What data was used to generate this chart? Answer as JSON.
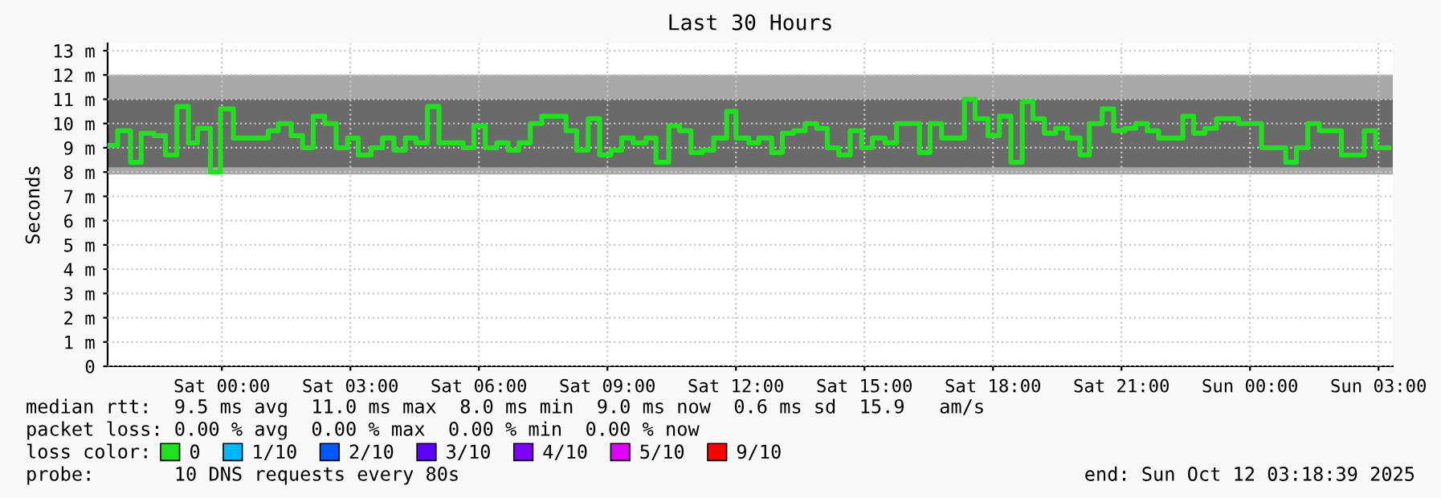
{
  "chart_data": {
    "type": "step",
    "title": "Last 30 Hours",
    "ylabel": "Seconds",
    "legend_title": "loss color:",
    "legend": "bottom",
    "x": [
      "2025-10-10T21:20",
      "2025-10-10T21:34",
      "2025-10-10T21:52",
      "2025-10-10T22:07",
      "2025-10-10T22:25",
      "2025-10-10T22:41",
      "2025-10-10T22:57",
      "2025-10-10T23:13",
      "2025-10-10T23:26",
      "2025-10-10T23:44",
      "2025-10-10T23:58",
      "2025-10-11T00:16",
      "2025-10-11T01:05",
      "2025-10-11T01:19",
      "2025-10-11T01:37",
      "2025-10-11T01:53",
      "2025-10-11T02:08",
      "2025-10-11T02:24",
      "2025-10-11T02:40",
      "2025-10-11T02:56",
      "2025-10-11T03:11",
      "2025-10-11T03:29",
      "2025-10-11T03:45",
      "2025-10-11T04:01",
      "2025-10-11T04:17",
      "2025-10-11T04:32",
      "2025-10-11T04:48",
      "2025-10-11T05:04",
      "2025-10-11T05:22",
      "2025-10-11T05:38",
      "2025-10-11T05:53",
      "2025-10-11T06:09",
      "2025-10-11T06:25",
      "2025-10-11T06:41",
      "2025-10-11T06:56",
      "2025-10-11T07:12",
      "2025-10-11T07:28",
      "2025-10-11T08:02",
      "2025-10-11T08:17",
      "2025-10-11T08:33",
      "2025-10-11T08:49",
      "2025-10-11T09:05",
      "2025-10-11T09:20",
      "2025-10-11T09:36",
      "2025-10-11T09:54",
      "2025-10-11T10:08",
      "2025-10-11T10:26",
      "2025-10-11T10:41",
      "2025-10-11T10:57",
      "2025-10-11T11:13",
      "2025-10-11T11:29",
      "2025-10-11T11:47",
      "2025-10-11T12:00",
      "2025-10-11T12:18",
      "2025-10-11T12:32",
      "2025-10-11T12:50",
      "2025-10-11T13:05",
      "2025-10-11T13:21",
      "2025-10-11T13:37",
      "2025-10-11T13:53",
      "2025-10-11T14:08",
      "2025-10-11T14:24",
      "2025-10-11T14:40",
      "2025-10-11T14:56",
      "2025-10-11T15:11",
      "2025-10-11T15:29",
      "2025-10-11T15:45",
      "2025-10-11T16:17",
      "2025-10-11T16:32",
      "2025-10-11T16:48",
      "2025-10-11T17:20",
      "2025-10-11T17:35",
      "2025-10-11T17:53",
      "2025-10-11T18:09",
      "2025-10-11T18:25",
      "2025-10-11T18:41",
      "2025-10-11T18:56",
      "2025-10-11T19:12",
      "2025-10-11T19:28",
      "2025-10-11T19:44",
      "2025-10-11T20:02",
      "2025-10-11T20:15",
      "2025-10-11T20:33",
      "2025-10-11T20:49",
      "2025-10-11T21:05",
      "2025-10-11T21:20",
      "2025-10-11T21:36",
      "2025-10-11T21:52",
      "2025-10-11T22:26",
      "2025-10-11T22:41",
      "2025-10-11T22:57",
      "2025-10-11T23:13",
      "2025-10-11T23:29",
      "2025-10-11T23:44",
      "2025-10-12T00:00",
      "2025-10-12T00:16",
      "2025-10-12T00:32",
      "2025-10-12T00:50",
      "2025-10-12T01:05",
      "2025-10-12T01:21",
      "2025-10-12T01:37",
      "2025-10-12T02:08",
      "2025-10-12T02:40",
      "2025-10-12T02:56",
      "2025-10-12T03:14"
    ],
    "series": [
      {
        "name": "0",
        "color": "#20e020",
        "values": [
          9.1,
          9.7,
          8.4,
          9.6,
          9.5,
          8.7,
          10.7,
          9.2,
          9.8,
          8.0,
          10.6,
          9.4,
          9.7,
          10.0,
          9.5,
          9.0,
          10.3,
          10.0,
          9.0,
          9.4,
          8.7,
          9.0,
          9.4,
          8.9,
          9.4,
          9.2,
          10.7,
          9.2,
          9.2,
          9.0,
          9.9,
          9.0,
          9.2,
          8.9,
          9.2,
          10.0,
          10.3,
          9.7,
          8.9,
          10.2,
          8.7,
          8.9,
          9.4,
          9.2,
          9.4,
          8.4,
          9.9,
          9.7,
          8.8,
          8.9,
          9.4,
          10.5,
          9.4,
          9.2,
          9.4,
          8.8,
          9.6,
          9.7,
          10.0,
          9.8,
          9.0,
          8.7,
          9.7,
          9.0,
          9.4,
          9.2,
          10.0,
          8.8,
          10.0,
          9.4,
          11.0,
          10.2,
          9.5,
          10.3,
          8.4,
          10.9,
          10.2,
          9.6,
          9.8,
          9.4,
          8.7,
          10.0,
          10.6,
          9.7,
          9.8,
          10.0,
          9.7,
          9.4,
          10.3,
          9.6,
          9.8,
          10.2,
          10.2,
          10.0,
          10.0,
          9.0,
          9.0,
          8.4,
          9.0,
          10.0,
          9.7,
          8.7,
          9.7,
          9.0,
          9.0
        ]
      },
      {
        "name": "1/10",
        "color": "#00b8ff",
        "values": [
          null,
          null,
          null,
          null,
          null,
          null,
          null,
          null,
          null,
          null,
          null,
          null,
          null,
          null,
          null,
          null,
          null,
          null,
          null,
          null,
          null,
          null,
          null,
          null,
          null,
          null,
          null,
          null,
          null,
          null,
          null,
          null,
          null,
          null,
          null,
          null,
          null,
          null,
          null,
          null,
          null,
          null,
          null,
          null,
          null,
          null,
          null,
          null,
          null,
          null,
          null,
          null,
          null,
          null,
          null,
          null,
          null,
          null,
          null,
          null,
          null,
          null,
          null,
          null,
          null,
          null,
          null,
          null,
          null,
          null,
          null,
          null,
          null,
          null,
          null,
          null,
          null,
          null,
          null,
          null,
          null,
          null,
          null,
          null,
          null,
          null,
          null,
          null,
          null,
          null,
          null,
          null,
          null,
          null,
          null,
          null,
          null,
          null,
          null,
          null,
          null,
          null,
          null,
          null,
          null
        ]
      },
      {
        "name": "2/10",
        "color": "#0059ff",
        "values": [
          null,
          null,
          null,
          null,
          null,
          null,
          null,
          null,
          null,
          null,
          null,
          null,
          null,
          null,
          null,
          null,
          null,
          null,
          null,
          null,
          null,
          null,
          null,
          null,
          null,
          null,
          null,
          null,
          null,
          null,
          null,
          null,
          null,
          null,
          null,
          null,
          null,
          null,
          null,
          null,
          null,
          null,
          null,
          null,
          null,
          null,
          null,
          null,
          null,
          null,
          null,
          null,
          null,
          null,
          null,
          null,
          null,
          null,
          null,
          null,
          null,
          null,
          null,
          null,
          null,
          null,
          null,
          null,
          null,
          null,
          null,
          null,
          null,
          null,
          null,
          null,
          null,
          null,
          null,
          null,
          null,
          null,
          null,
          null,
          null,
          null,
          null,
          null,
          null,
          null,
          null,
          null,
          null,
          null,
          null,
          null,
          null,
          null,
          null,
          null,
          null,
          null,
          null,
          null,
          null
        ]
      },
      {
        "name": "3/10",
        "color": "#5e00ff",
        "values": [
          null,
          null,
          null,
          null,
          null,
          null,
          null,
          null,
          null,
          null,
          null,
          null,
          null,
          null,
          null,
          null,
          null,
          null,
          null,
          null,
          null,
          null,
          null,
          null,
          null,
          null,
          null,
          null,
          null,
          null,
          null,
          null,
          null,
          null,
          null,
          null,
          null,
          null,
          null,
          null,
          null,
          null,
          null,
          null,
          null,
          null,
          null,
          null,
          null,
          null,
          null,
          null,
          null,
          null,
          null,
          null,
          null,
          null,
          null,
          null,
          null,
          null,
          null,
          null,
          null,
          null,
          null,
          null,
          null,
          null,
          null,
          null,
          null,
          null,
          null,
          null,
          null,
          null,
          null,
          null,
          null,
          null,
          null,
          null,
          null,
          null,
          null,
          null,
          null,
          null,
          null,
          null,
          null,
          null,
          null,
          null,
          null,
          null,
          null,
          null,
          null,
          null,
          null,
          null,
          null
        ]
      },
      {
        "name": "4/10",
        "color": "#7e00ff",
        "values": [
          null,
          null,
          null,
          null,
          null,
          null,
          null,
          null,
          null,
          null,
          null,
          null,
          null,
          null,
          null,
          null,
          null,
          null,
          null,
          null,
          null,
          null,
          null,
          null,
          null,
          null,
          null,
          null,
          null,
          null,
          null,
          null,
          null,
          null,
          null,
          null,
          null,
          null,
          null,
          null,
          null,
          null,
          null,
          null,
          null,
          null,
          null,
          null,
          null,
          null,
          null,
          null,
          null,
          null,
          null,
          null,
          null,
          null,
          null,
          null,
          null,
          null,
          null,
          null,
          null,
          null,
          null,
          null,
          null,
          null,
          null,
          null,
          null,
          null,
          null,
          null,
          null,
          null,
          null,
          null,
          null,
          null,
          null,
          null,
          null,
          null,
          null,
          null,
          null,
          null,
          null,
          null,
          null,
          null,
          null,
          null,
          null,
          null,
          null,
          null,
          null,
          null,
          null,
          null,
          null
        ]
      },
      {
        "name": "5/10",
        "color": "#dd00ff",
        "values": [
          null,
          null,
          null,
          null,
          null,
          null,
          null,
          null,
          null,
          null,
          null,
          null,
          null,
          null,
          null,
          null,
          null,
          null,
          null,
          null,
          null,
          null,
          null,
          null,
          null,
          null,
          null,
          null,
          null,
          null,
          null,
          null,
          null,
          null,
          null,
          null,
          null,
          null,
          null,
          null,
          null,
          null,
          null,
          null,
          null,
          null,
          null,
          null,
          null,
          null,
          null,
          null,
          null,
          null,
          null,
          null,
          null,
          null,
          null,
          null,
          null,
          null,
          null,
          null,
          null,
          null,
          null,
          null,
          null,
          null,
          null,
          null,
          null,
          null,
          null,
          null,
          null,
          null,
          null,
          null,
          null,
          null,
          null,
          null,
          null,
          null,
          null,
          null,
          null,
          null,
          null,
          null,
          null,
          null,
          null,
          null,
          null,
          null,
          null,
          null,
          null,
          null,
          null,
          null,
          null
        ]
      },
      {
        "name": "9/10",
        "color": "#ff0000",
        "values": [
          null,
          null,
          null,
          null,
          null,
          null,
          null,
          null,
          null,
          null,
          null,
          null,
          null,
          null,
          null,
          null,
          null,
          null,
          null,
          null,
          null,
          null,
          null,
          null,
          null,
          null,
          null,
          null,
          null,
          null,
          null,
          null,
          null,
          null,
          null,
          null,
          null,
          null,
          null,
          null,
          null,
          null,
          null,
          null,
          null,
          null,
          null,
          null,
          null,
          null,
          null,
          null,
          null,
          null,
          null,
          null,
          null,
          null,
          null,
          null,
          null,
          null,
          null,
          null,
          null,
          null,
          null,
          null,
          null,
          null,
          null,
          null,
          null,
          null,
          null,
          null,
          null,
          null,
          null,
          null,
          null,
          null,
          null,
          null,
          null,
          null,
          null,
          null,
          null,
          null,
          null,
          null,
          null,
          null,
          null,
          null,
          null,
          null,
          null,
          null,
          null,
          null,
          null,
          null,
          null
        ]
      }
    ],
    "bands": [
      {
        "axis": "y",
        "from": 7.9,
        "to": 12.0,
        "color": "#a8a8a8"
      },
      {
        "axis": "y",
        "from": 8.2,
        "to": 11.0,
        "color": "#6a6a6a"
      }
    ],
    "xlim": [
      "2025-10-10T21:20",
      "2025-10-12T03:20"
    ],
    "xticks": [
      {
        "value": "2025-10-11T00:00",
        "label": "Sat 00:00"
      },
      {
        "value": "2025-10-11T03:00",
        "label": "Sat 03:00"
      },
      {
        "value": "2025-10-11T06:00",
        "label": "Sat 06:00"
      },
      {
        "value": "2025-10-11T09:00",
        "label": "Sat 09:00"
      },
      {
        "value": "2025-10-11T12:00",
        "label": "Sat 12:00"
      },
      {
        "value": "2025-10-11T15:00",
        "label": "Sat 15:00"
      },
      {
        "value": "2025-10-11T18:00",
        "label": "Sat 18:00"
      },
      {
        "value": "2025-10-11T21:00",
        "label": "Sat 21:00"
      },
      {
        "value": "2025-10-12T00:00",
        "label": "Sun 00:00"
      },
      {
        "value": "2025-10-12T03:00",
        "label": "Sun 03:00"
      }
    ],
    "ylim": [
      0,
      13.3
    ],
    "yticks": [
      0,
      {
        "value": 1,
        "label": "1 m"
      },
      {
        "value": 2,
        "label": "2 m"
      },
      {
        "value": 3,
        "label": "3 m"
      },
      {
        "value": 4,
        "label": "4 m"
      },
      {
        "value": 5,
        "label": "5 m"
      },
      {
        "value": 6,
        "label": "6 m"
      },
      {
        "value": 7,
        "label": "7 m"
      },
      {
        "value": 8,
        "label": "8 m"
      },
      {
        "value": 9,
        "label": "9 m"
      },
      {
        "value": 10,
        "label": "10 m"
      },
      {
        "value": 11,
        "label": "11 m"
      },
      {
        "value": 12,
        "label": "12 m"
      },
      {
        "value": 13,
        "label": "13 m"
      }
    ],
    "grid": true,
    "line_style": "solid",
    "marker": "none",
    "annotations": [
      "median rtt:  9.5 ms avg  11.0 ms max  8.0 ms min  9.0 ms now  0.6 ms sd  15.9   am/s",
      "packet loss: 0.00 % avg  0.00 % max  0.00 % min  0.00 % now",
      "probe:       10 DNS requests every 80s",
      "end: Sun Oct 12 03:18:39 2025"
    ]
  }
}
